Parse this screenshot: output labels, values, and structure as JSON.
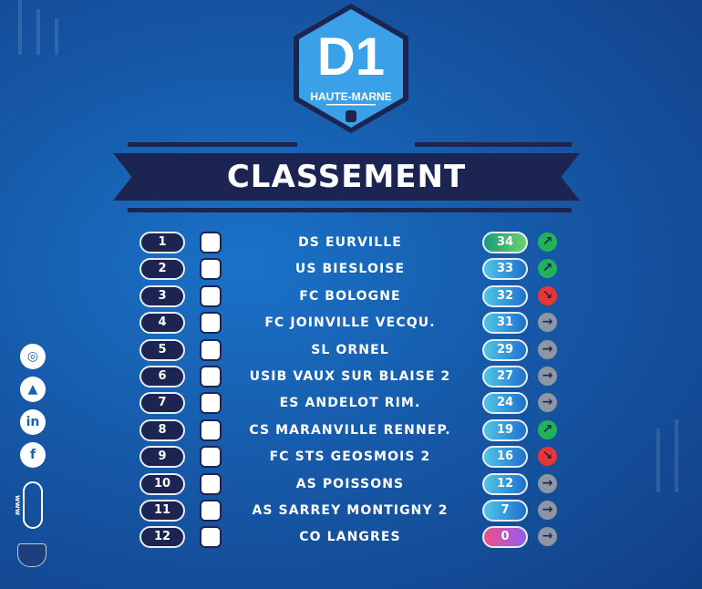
{
  "header": {
    "logo_title": "D1",
    "logo_subtitle": "HAUTE-MARNE",
    "banner": "CLASSEMENT"
  },
  "colors": {
    "navy": "#1c2552",
    "up": "#20b35a",
    "down": "#e83535",
    "same": "#8d96a4"
  },
  "standings": [
    {
      "rank": "1",
      "club": "DS EURVILLE",
      "points": "34",
      "trend": "up"
    },
    {
      "rank": "2",
      "club": "US BIESLOISE",
      "points": "33",
      "trend": "up"
    },
    {
      "rank": "3",
      "club": "FC BOLOGNE",
      "points": "32",
      "trend": "down"
    },
    {
      "rank": "4",
      "club": "FC JOINVILLE VECQU.",
      "points": "31",
      "trend": "same"
    },
    {
      "rank": "5",
      "club": "SL ORNEL",
      "points": "29",
      "trend": "same"
    },
    {
      "rank": "6",
      "club": "USIB VAUX SUR BLAISE 2",
      "points": "27",
      "trend": "same"
    },
    {
      "rank": "7",
      "club": "ES ANDELOT RIM.",
      "points": "24",
      "trend": "same"
    },
    {
      "rank": "8",
      "club": "CS MARANVILLE RENNEP.",
      "points": "19",
      "trend": "up"
    },
    {
      "rank": "9",
      "club": "FC STS GEOSMOIS 2",
      "points": "16",
      "trend": "down"
    },
    {
      "rank": "10",
      "club": "AS POISSONS",
      "points": "12",
      "trend": "same"
    },
    {
      "rank": "11",
      "club": "AS SARREY MONTIGNY 2",
      "points": "7",
      "trend": "same"
    },
    {
      "rank": "12",
      "club": "CO LANGRES",
      "points": "0",
      "trend": "same"
    }
  ],
  "social": [
    "instagram-icon",
    "tiktok-icon",
    "linkedin-icon",
    "facebook-icon",
    "website-icon"
  ]
}
